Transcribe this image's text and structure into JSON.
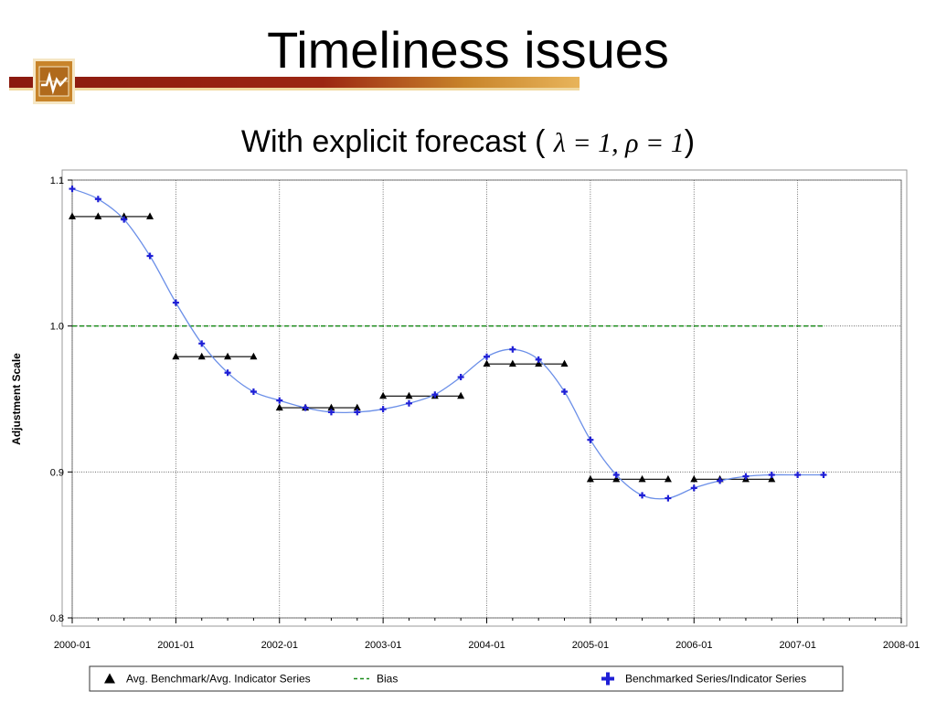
{
  "slide": {
    "title": "Timeliness issues",
    "subtitle_text": "With explicit forecast (",
    "subtitle_math": "λ = 1, ρ = 1",
    "subtitle_close": ")"
  },
  "colors": {
    "benchmark": "#000000",
    "bias": "#1a8c1a",
    "indicator_line": "#6b8fe8",
    "indicator_marker": "#1f1fd6",
    "title_rule": "#8b1a10"
  },
  "chart_data": {
    "type": "line",
    "ylabel": "Adjustment Scale",
    "xlabel": "",
    "ylim": [
      0.8,
      1.1
    ],
    "yticks": [
      "0.8",
      "0.9",
      "1.0",
      "1.1"
    ],
    "xticks": [
      "2000-01",
      "2001-01",
      "2002-01",
      "2003-01",
      "2004-01",
      "2005-01",
      "2006-01",
      "2007-01",
      "2008-01"
    ],
    "grid": true,
    "legend_position": "bottom",
    "legend": [
      {
        "symbol": "triangle",
        "label": "Avg. Benchmark/Avg. Indicator Series"
      },
      {
        "symbol": "dashed-line",
        "label": "Bias"
      },
      {
        "symbol": "plus",
        "label": "Benchmarked Series/Indicator Series"
      }
    ],
    "series": [
      {
        "name": "Avg. Benchmark/Avg. Indicator Series",
        "style": "step",
        "segments": [
          {
            "x": [
              "2000-01",
              "2000-04",
              "2000-07",
              "2000-10"
            ],
            "y": 1.075
          },
          {
            "x": [
              "2001-01",
              "2001-04",
              "2001-07",
              "2001-10"
            ],
            "y": 0.979
          },
          {
            "x": [
              "2002-01",
              "2002-04",
              "2002-07",
              "2002-10"
            ],
            "y": 0.944
          },
          {
            "x": [
              "2003-01",
              "2003-04",
              "2003-07",
              "2003-10"
            ],
            "y": 0.952
          },
          {
            "x": [
              "2004-01",
              "2004-04",
              "2004-07",
              "2004-10"
            ],
            "y": 0.974
          },
          {
            "x": [
              "2005-01",
              "2005-04",
              "2005-07",
              "2005-10"
            ],
            "y": 0.895
          },
          {
            "x": [
              "2006-01",
              "2006-04",
              "2006-07",
              "2006-10"
            ],
            "y": 0.895
          }
        ]
      },
      {
        "name": "Bias",
        "style": "dashed",
        "x": [
          "2000-01",
          "2007-04"
        ],
        "y": [
          1.0,
          1.0
        ]
      },
      {
        "name": "Benchmarked Series/Indicator Series",
        "style": "line",
        "x": [
          "2000-01",
          "2000-04",
          "2000-07",
          "2000-10",
          "2001-01",
          "2001-04",
          "2001-07",
          "2001-10",
          "2002-01",
          "2002-04",
          "2002-07",
          "2002-10",
          "2003-01",
          "2003-04",
          "2003-07",
          "2003-10",
          "2004-01",
          "2004-04",
          "2004-07",
          "2004-10",
          "2005-01",
          "2005-04",
          "2005-07",
          "2005-10",
          "2006-01",
          "2006-04",
          "2006-07",
          "2006-10",
          "2007-01",
          "2007-04"
        ],
        "y": [
          1.094,
          1.087,
          1.073,
          1.048,
          1.016,
          0.988,
          0.968,
          0.955,
          0.949,
          0.944,
          0.941,
          0.941,
          0.943,
          0.947,
          0.953,
          0.965,
          0.979,
          0.984,
          0.977,
          0.955,
          0.922,
          0.898,
          0.884,
          0.882,
          0.889,
          0.894,
          0.897,
          0.898,
          0.898,
          0.898
        ]
      }
    ]
  }
}
